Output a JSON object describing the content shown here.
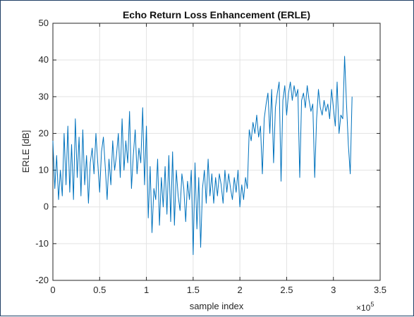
{
  "chart_data": {
    "type": "line",
    "title": "Echo Return Loss Enhancement (ERLE)",
    "xlabel": "sample index",
    "ylabel": "ERLE [dB]",
    "x_multiplier_label": "×10",
    "x_multiplier_exponent": "5",
    "xlim": [
      0,
      3.5
    ],
    "ylim": [
      -20,
      50
    ],
    "xticks": [
      0,
      0.5,
      1,
      1.5,
      2,
      2.5,
      3,
      3.5
    ],
    "xtick_labels": [
      "0",
      "0.5",
      "1",
      "1.5",
      "2",
      "2.5",
      "3",
      "3.5"
    ],
    "yticks": [
      -20,
      -10,
      0,
      10,
      20,
      30,
      40,
      50
    ],
    "ytick_labels": [
      "-20",
      "-10",
      "0",
      "10",
      "20",
      "30",
      "40",
      "50"
    ],
    "grid": true,
    "line_color": "#0072BD",
    "series": [
      {
        "x": [
          0.0,
          0.02,
          0.04,
          0.06,
          0.08,
          0.1,
          0.12,
          0.14,
          0.16,
          0.18,
          0.2,
          0.22,
          0.24,
          0.26,
          0.28,
          0.3,
          0.32,
          0.34,
          0.36,
          0.38,
          0.4,
          0.42,
          0.44,
          0.46,
          0.48,
          0.5,
          0.52,
          0.54,
          0.56,
          0.58,
          0.6,
          0.62,
          0.64,
          0.66,
          0.68,
          0.7,
          0.72,
          0.74,
          0.76,
          0.78,
          0.8,
          0.82,
          0.84,
          0.86,
          0.88,
          0.9,
          0.92,
          0.94,
          0.96,
          0.98,
          1.0,
          1.02,
          1.04,
          1.06,
          1.08,
          1.1,
          1.12,
          1.14,
          1.16,
          1.18,
          1.2,
          1.22,
          1.24,
          1.26,
          1.28,
          1.3,
          1.32,
          1.34,
          1.36,
          1.38,
          1.4,
          1.42,
          1.44,
          1.46,
          1.48,
          1.5,
          1.52,
          1.54,
          1.56,
          1.58,
          1.6,
          1.62,
          1.64,
          1.66,
          1.68,
          1.7,
          1.72,
          1.74,
          1.76,
          1.78,
          1.8,
          1.82,
          1.84,
          1.86,
          1.88,
          1.9,
          1.92,
          1.94,
          1.96,
          1.98,
          2.0,
          2.02,
          2.04,
          2.06,
          2.08,
          2.1,
          2.12,
          2.14,
          2.16,
          2.18,
          2.2,
          2.22,
          2.24,
          2.26,
          2.28,
          2.3,
          2.32,
          2.34,
          2.36,
          2.38,
          2.4,
          2.42,
          2.44,
          2.46,
          2.48,
          2.5,
          2.52,
          2.54,
          2.56,
          2.58,
          2.6,
          2.62,
          2.64,
          2.66,
          2.68,
          2.7,
          2.72,
          2.74,
          2.76,
          2.78,
          2.8,
          2.82,
          2.84,
          2.86,
          2.88,
          2.9,
          2.92,
          2.94,
          2.96,
          2.98,
          3.0,
          3.02,
          3.04,
          3.06,
          3.08,
          3.1,
          3.12,
          3.14,
          3.16,
          3.18,
          3.2
        ],
        "y": [
          18,
          5,
          14,
          2,
          10,
          3,
          20,
          6,
          22,
          4,
          17,
          2,
          24,
          8,
          19,
          3,
          21,
          6,
          14,
          1,
          12,
          16,
          9,
          20,
          12,
          4,
          15,
          19,
          11,
          2,
          13,
          6,
          18,
          10,
          14,
          20,
          8,
          24,
          10,
          18,
          12,
          26,
          5,
          14,
          21,
          9,
          16,
          12,
          27,
          6,
          22,
          -3,
          11,
          -7,
          5,
          2,
          13,
          -5,
          8,
          0,
          11,
          -2,
          14,
          -4,
          15,
          -5,
          10,
          3,
          -1,
          9,
          5,
          -4,
          7,
          2,
          10,
          -13,
          12,
          -6,
          8,
          -11,
          5,
          10,
          1,
          13,
          3,
          9,
          1,
          8,
          3,
          9,
          6,
          1,
          10,
          4,
          9,
          5,
          2,
          8,
          4,
          10,
          0,
          6,
          2,
          8,
          5,
          21,
          18,
          23,
          20,
          25,
          19,
          22,
          9,
          24,
          28,
          31,
          20,
          32,
          12,
          27,
          31,
          34,
          7,
          29,
          33,
          25,
          31,
          34,
          29,
          33,
          30,
          32,
          8,
          29,
          31,
          27,
          33,
          29,
          26,
          28,
          8,
          24,
          32,
          27,
          25,
          29,
          26,
          28,
          24,
          32,
          27,
          22,
          34,
          20,
          25,
          24,
          41,
          28,
          17,
          9,
          30
        ]
      }
    ]
  }
}
